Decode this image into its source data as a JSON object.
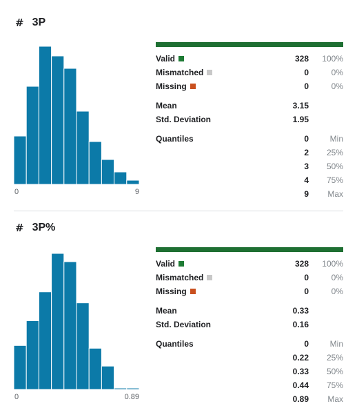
{
  "columns": [
    {
      "name": "3P",
      "type_icon": "hash-icon",
      "hist": {
        "heights": [
          70,
          142,
          200,
          186,
          168,
          106,
          62,
          36,
          18,
          6
        ],
        "max_height": 200,
        "xmin_label": "0",
        "xmax_label": "9",
        "color": "#0c7aa8"
      },
      "valid": {
        "label": "Valid",
        "value": "328",
        "pct": "100%",
        "color": "#1e7b34"
      },
      "mismatched": {
        "label": "Mismatched",
        "value": "0",
        "pct": "0%",
        "color": "#c8c8c8"
      },
      "missing": {
        "label": "Missing",
        "value": "0",
        "pct": "0%",
        "color": "#c9501f"
      },
      "mean": {
        "label": "Mean",
        "value": "3.15"
      },
      "std": {
        "label": "Std. Deviation",
        "value": "1.95"
      },
      "quantiles_label": "Quantiles",
      "quantiles": [
        {
          "value": "0",
          "label": "Min"
        },
        {
          "value": "2",
          "label": "25%"
        },
        {
          "value": "3",
          "label": "50%"
        },
        {
          "value": "4",
          "label": "75%"
        },
        {
          "value": "9",
          "label": "Max"
        }
      ]
    },
    {
      "name": "3P%",
      "type_icon": "hash-icon",
      "hist": {
        "heights": [
          64,
          100,
          142,
          198,
          186,
          126,
          60,
          34,
          2,
          2
        ],
        "max_height": 200,
        "xmin_label": "0",
        "xmax_label": "0.89",
        "color": "#0c7aa8"
      },
      "valid": {
        "label": "Valid",
        "value": "328",
        "pct": "100%",
        "color": "#1e7b34"
      },
      "mismatched": {
        "label": "Mismatched",
        "value": "0",
        "pct": "0%",
        "color": "#c8c8c8"
      },
      "missing": {
        "label": "Missing",
        "value": "0",
        "pct": "0%",
        "color": "#c9501f"
      },
      "mean": {
        "label": "Mean",
        "value": "0.33"
      },
      "std": {
        "label": "Std. Deviation",
        "value": "0.16"
      },
      "quantiles_label": "Quantiles",
      "quantiles": [
        {
          "value": "0",
          "label": "Min"
        },
        {
          "value": "0.22",
          "label": "25%"
        },
        {
          "value": "0.33",
          "label": "50%"
        },
        {
          "value": "0.44",
          "label": "75%"
        },
        {
          "value": "0.89",
          "label": "Max"
        }
      ]
    }
  ]
}
